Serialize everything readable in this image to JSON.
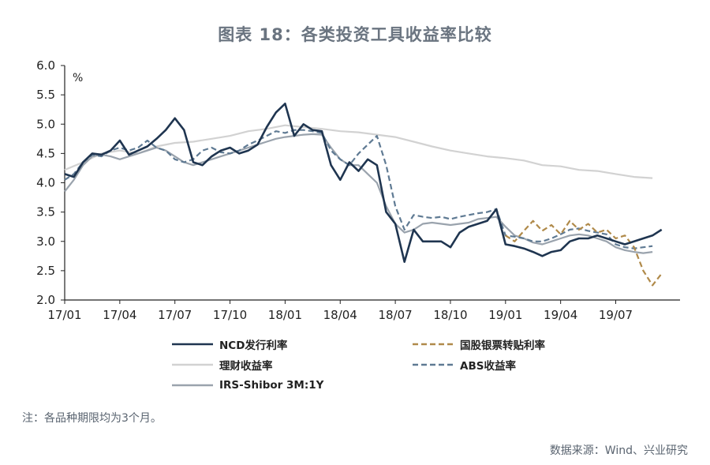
{
  "title": "图表 18：各类投资工具收益率比较",
  "footnote": "注：各品种期限均为3个月。",
  "source": "数据来源：Wind、兴业研究",
  "chart_data": {
    "type": "line",
    "title": "图表 18：各类投资工具收益率比较",
    "ylabel": "%",
    "ylim": [
      2.0,
      6.0
    ],
    "yticks": [
      "2.0",
      "2.5",
      "3.0",
      "3.5",
      "4.0",
      "4.5",
      "5.0",
      "5.5",
      "6.0"
    ],
    "xlim": [
      0,
      33.5
    ],
    "xticks": [
      {
        "pos": 0,
        "label": "17/01"
      },
      {
        "pos": 3,
        "label": "17/04"
      },
      {
        "pos": 6,
        "label": "17/07"
      },
      {
        "pos": 9,
        "label": "17/10"
      },
      {
        "pos": 12,
        "label": "18/01"
      },
      {
        "pos": 15,
        "label": "18/04"
      },
      {
        "pos": 18,
        "label": "18/07"
      },
      {
        "pos": 21,
        "label": "18/10"
      },
      {
        "pos": 24,
        "label": "19/01"
      },
      {
        "pos": 27,
        "label": "19/04"
      },
      {
        "pos": 30,
        "label": "19/07"
      }
    ],
    "x_unit_note": "months since 17/01",
    "grid": false,
    "legend_position": "bottom",
    "series": [
      {
        "name": "理财收益率",
        "color": "#d2d2d2",
        "style": "solid",
        "points": [
          [
            0,
            4.22
          ],
          [
            1,
            4.35
          ],
          [
            2,
            4.5
          ],
          [
            3,
            4.55
          ],
          [
            4,
            4.5
          ],
          [
            5,
            4.62
          ],
          [
            6,
            4.68
          ],
          [
            7,
            4.7
          ],
          [
            8,
            4.75
          ],
          [
            9,
            4.8
          ],
          [
            10,
            4.88
          ],
          [
            11,
            4.92
          ],
          [
            12,
            4.98
          ],
          [
            13,
            4.95
          ],
          [
            14,
            4.92
          ],
          [
            15,
            4.88
          ],
          [
            16,
            4.86
          ],
          [
            17,
            4.82
          ],
          [
            18,
            4.78
          ],
          [
            19,
            4.7
          ],
          [
            20,
            4.62
          ],
          [
            21,
            4.55
          ],
          [
            22,
            4.5
          ],
          [
            23,
            4.45
          ],
          [
            24,
            4.42
          ],
          [
            25,
            4.38
          ],
          [
            26,
            4.3
          ],
          [
            27,
            4.28
          ],
          [
            28,
            4.22
          ],
          [
            29,
            4.2
          ],
          [
            30,
            4.15
          ],
          [
            31,
            4.1
          ],
          [
            32,
            4.08
          ]
        ]
      },
      {
        "name": "IRS-Shibor 3M:1Y",
        "color": "#9aa3ad",
        "style": "solid",
        "points": [
          [
            0,
            3.85
          ],
          [
            0.5,
            4.05
          ],
          [
            1,
            4.3
          ],
          [
            1.5,
            4.45
          ],
          [
            2,
            4.48
          ],
          [
            2.5,
            4.45
          ],
          [
            3,
            4.4
          ],
          [
            3.5,
            4.45
          ],
          [
            4,
            4.5
          ],
          [
            4.5,
            4.55
          ],
          [
            5,
            4.6
          ],
          [
            5.5,
            4.55
          ],
          [
            6,
            4.45
          ],
          [
            6.5,
            4.35
          ],
          [
            7,
            4.3
          ],
          [
            7.5,
            4.35
          ],
          [
            8,
            4.4
          ],
          [
            8.5,
            4.45
          ],
          [
            9,
            4.5
          ],
          [
            9.5,
            4.55
          ],
          [
            10,
            4.6
          ],
          [
            10.5,
            4.65
          ],
          [
            11,
            4.7
          ],
          [
            11.5,
            4.75
          ],
          [
            12,
            4.78
          ],
          [
            12.5,
            4.8
          ],
          [
            13,
            4.82
          ],
          [
            13.5,
            4.83
          ],
          [
            14,
            4.82
          ],
          [
            14.5,
            4.6
          ],
          [
            15,
            4.4
          ],
          [
            15.5,
            4.3
          ],
          [
            16,
            4.3
          ],
          [
            16.5,
            4.15
          ],
          [
            17,
            4.0
          ],
          [
            17.5,
            3.6
          ],
          [
            18,
            3.3
          ],
          [
            18.5,
            3.15
          ],
          [
            19,
            3.2
          ],
          [
            19.5,
            3.3
          ],
          [
            20,
            3.32
          ],
          [
            20.5,
            3.3
          ],
          [
            21,
            3.28
          ],
          [
            21.5,
            3.3
          ],
          [
            22,
            3.32
          ],
          [
            22.5,
            3.38
          ],
          [
            23,
            3.4
          ],
          [
            23.5,
            3.42
          ],
          [
            24,
            3.25
          ],
          [
            24.5,
            3.1
          ],
          [
            25,
            3.05
          ],
          [
            25.5,
            2.98
          ],
          [
            26,
            2.95
          ],
          [
            26.5,
            3.0
          ],
          [
            27,
            3.05
          ],
          [
            27.5,
            3.1
          ],
          [
            28,
            3.12
          ],
          [
            28.5,
            3.1
          ],
          [
            29,
            3.05
          ],
          [
            29.5,
            3.0
          ],
          [
            30,
            2.9
          ],
          [
            30.5,
            2.85
          ],
          [
            31,
            2.82
          ],
          [
            31.5,
            2.8
          ],
          [
            32,
            2.82
          ]
        ]
      },
      {
        "name": "ABS收益率",
        "color": "#5f7a93",
        "style": "dashed",
        "points": [
          [
            0,
            4.05
          ],
          [
            0.5,
            4.15
          ],
          [
            1,
            4.35
          ],
          [
            1.5,
            4.48
          ],
          [
            2,
            4.45
          ],
          [
            2.5,
            4.55
          ],
          [
            3,
            4.6
          ],
          [
            3.5,
            4.55
          ],
          [
            4,
            4.6
          ],
          [
            4.5,
            4.72
          ],
          [
            5,
            4.6
          ],
          [
            5.5,
            4.55
          ],
          [
            6,
            4.4
          ],
          [
            6.5,
            4.35
          ],
          [
            7,
            4.4
          ],
          [
            7.5,
            4.55
          ],
          [
            8,
            4.6
          ],
          [
            8.5,
            4.52
          ],
          [
            9,
            4.5
          ],
          [
            9.5,
            4.55
          ],
          [
            10,
            4.65
          ],
          [
            10.5,
            4.72
          ],
          [
            11,
            4.8
          ],
          [
            11.5,
            4.88
          ],
          [
            12,
            4.85
          ],
          [
            12.5,
            4.9
          ],
          [
            13,
            4.9
          ],
          [
            13.5,
            4.88
          ],
          [
            14,
            4.85
          ],
          [
            14.5,
            4.55
          ],
          [
            15,
            4.4
          ],
          [
            15.5,
            4.3
          ],
          [
            16,
            4.5
          ],
          [
            16.5,
            4.65
          ],
          [
            17,
            4.8
          ],
          [
            17.5,
            4.3
          ],
          [
            18,
            3.6
          ],
          [
            18.5,
            3.2
          ],
          [
            19,
            3.45
          ],
          [
            19.5,
            3.42
          ],
          [
            20,
            3.4
          ],
          [
            20.5,
            3.42
          ],
          [
            21,
            3.38
          ],
          [
            21.5,
            3.42
          ],
          [
            22,
            3.45
          ],
          [
            22.5,
            3.48
          ],
          [
            23,
            3.5
          ],
          [
            23.5,
            3.55
          ],
          [
            24,
            3.1
          ],
          [
            24.5,
            3.08
          ],
          [
            25,
            3.05
          ],
          [
            25.5,
            3.0
          ],
          [
            26,
            3.0
          ],
          [
            26.5,
            3.05
          ],
          [
            27,
            3.12
          ],
          [
            27.5,
            3.2
          ],
          [
            28,
            3.22
          ],
          [
            28.5,
            3.18
          ],
          [
            29,
            3.15
          ],
          [
            29.5,
            3.12
          ],
          [
            30,
            2.95
          ],
          [
            30.5,
            2.9
          ],
          [
            31,
            2.88
          ],
          [
            31.5,
            2.9
          ],
          [
            32,
            2.92
          ]
        ]
      },
      {
        "name": "国股银票转贴利率",
        "color": "#b08a4a",
        "style": "dashed",
        "points": [
          [
            24,
            3.1
          ],
          [
            24.5,
            3.0
          ],
          [
            25,
            3.18
          ],
          [
            25.5,
            3.35
          ],
          [
            26,
            3.18
          ],
          [
            26.5,
            3.28
          ],
          [
            27,
            3.12
          ],
          [
            27.5,
            3.35
          ],
          [
            28,
            3.2
          ],
          [
            28.5,
            3.3
          ],
          [
            29,
            3.15
          ],
          [
            29.5,
            3.2
          ],
          [
            30,
            3.05
          ],
          [
            30.5,
            3.1
          ],
          [
            31,
            2.9
          ],
          [
            31.5,
            2.5
          ],
          [
            32,
            2.25
          ],
          [
            32.5,
            2.45
          ]
        ]
      },
      {
        "name": "NCD发行利率",
        "color": "#1f3550",
        "style": "solid",
        "points": [
          [
            0,
            4.15
          ],
          [
            0.5,
            4.1
          ],
          [
            1,
            4.35
          ],
          [
            1.5,
            4.5
          ],
          [
            2,
            4.48
          ],
          [
            2.5,
            4.55
          ],
          [
            3,
            4.72
          ],
          [
            3.5,
            4.48
          ],
          [
            4,
            4.55
          ],
          [
            4.5,
            4.62
          ],
          [
            5,
            4.75
          ],
          [
            5.5,
            4.9
          ],
          [
            6,
            5.1
          ],
          [
            6.5,
            4.9
          ],
          [
            7,
            4.35
          ],
          [
            7.5,
            4.3
          ],
          [
            8,
            4.45
          ],
          [
            8.5,
            4.55
          ],
          [
            9,
            4.6
          ],
          [
            9.5,
            4.5
          ],
          [
            10,
            4.55
          ],
          [
            10.5,
            4.65
          ],
          [
            11,
            4.95
          ],
          [
            11.5,
            5.2
          ],
          [
            12,
            5.35
          ],
          [
            12.5,
            4.8
          ],
          [
            13,
            5.0
          ],
          [
            13.5,
            4.9
          ],
          [
            14,
            4.88
          ],
          [
            14.5,
            4.3
          ],
          [
            15,
            4.05
          ],
          [
            15.5,
            4.35
          ],
          [
            16,
            4.2
          ],
          [
            16.5,
            4.4
          ],
          [
            17,
            4.3
          ],
          [
            17.5,
            3.5
          ],
          [
            18,
            3.3
          ],
          [
            18.5,
            2.65
          ],
          [
            19,
            3.2
          ],
          [
            19.5,
            3.0
          ],
          [
            20,
            3.0
          ],
          [
            20.5,
            3.0
          ],
          [
            21,
            2.9
          ],
          [
            21.5,
            3.15
          ],
          [
            22,
            3.25
          ],
          [
            22.5,
            3.3
          ],
          [
            23,
            3.35
          ],
          [
            23.5,
            3.55
          ],
          [
            24,
            2.95
          ],
          [
            24.5,
            2.92
          ],
          [
            25,
            2.88
          ],
          [
            25.5,
            2.82
          ],
          [
            26,
            2.75
          ],
          [
            26.5,
            2.82
          ],
          [
            27,
            2.85
          ],
          [
            27.5,
            3.0
          ],
          [
            28,
            3.05
          ],
          [
            28.5,
            3.05
          ],
          [
            29,
            3.1
          ],
          [
            29.5,
            3.05
          ],
          [
            30,
            3.0
          ],
          [
            30.5,
            2.95
          ],
          [
            31,
            3.0
          ],
          [
            31.5,
            3.05
          ],
          [
            32,
            3.1
          ],
          [
            32.5,
            3.2
          ]
        ]
      }
    ]
  }
}
